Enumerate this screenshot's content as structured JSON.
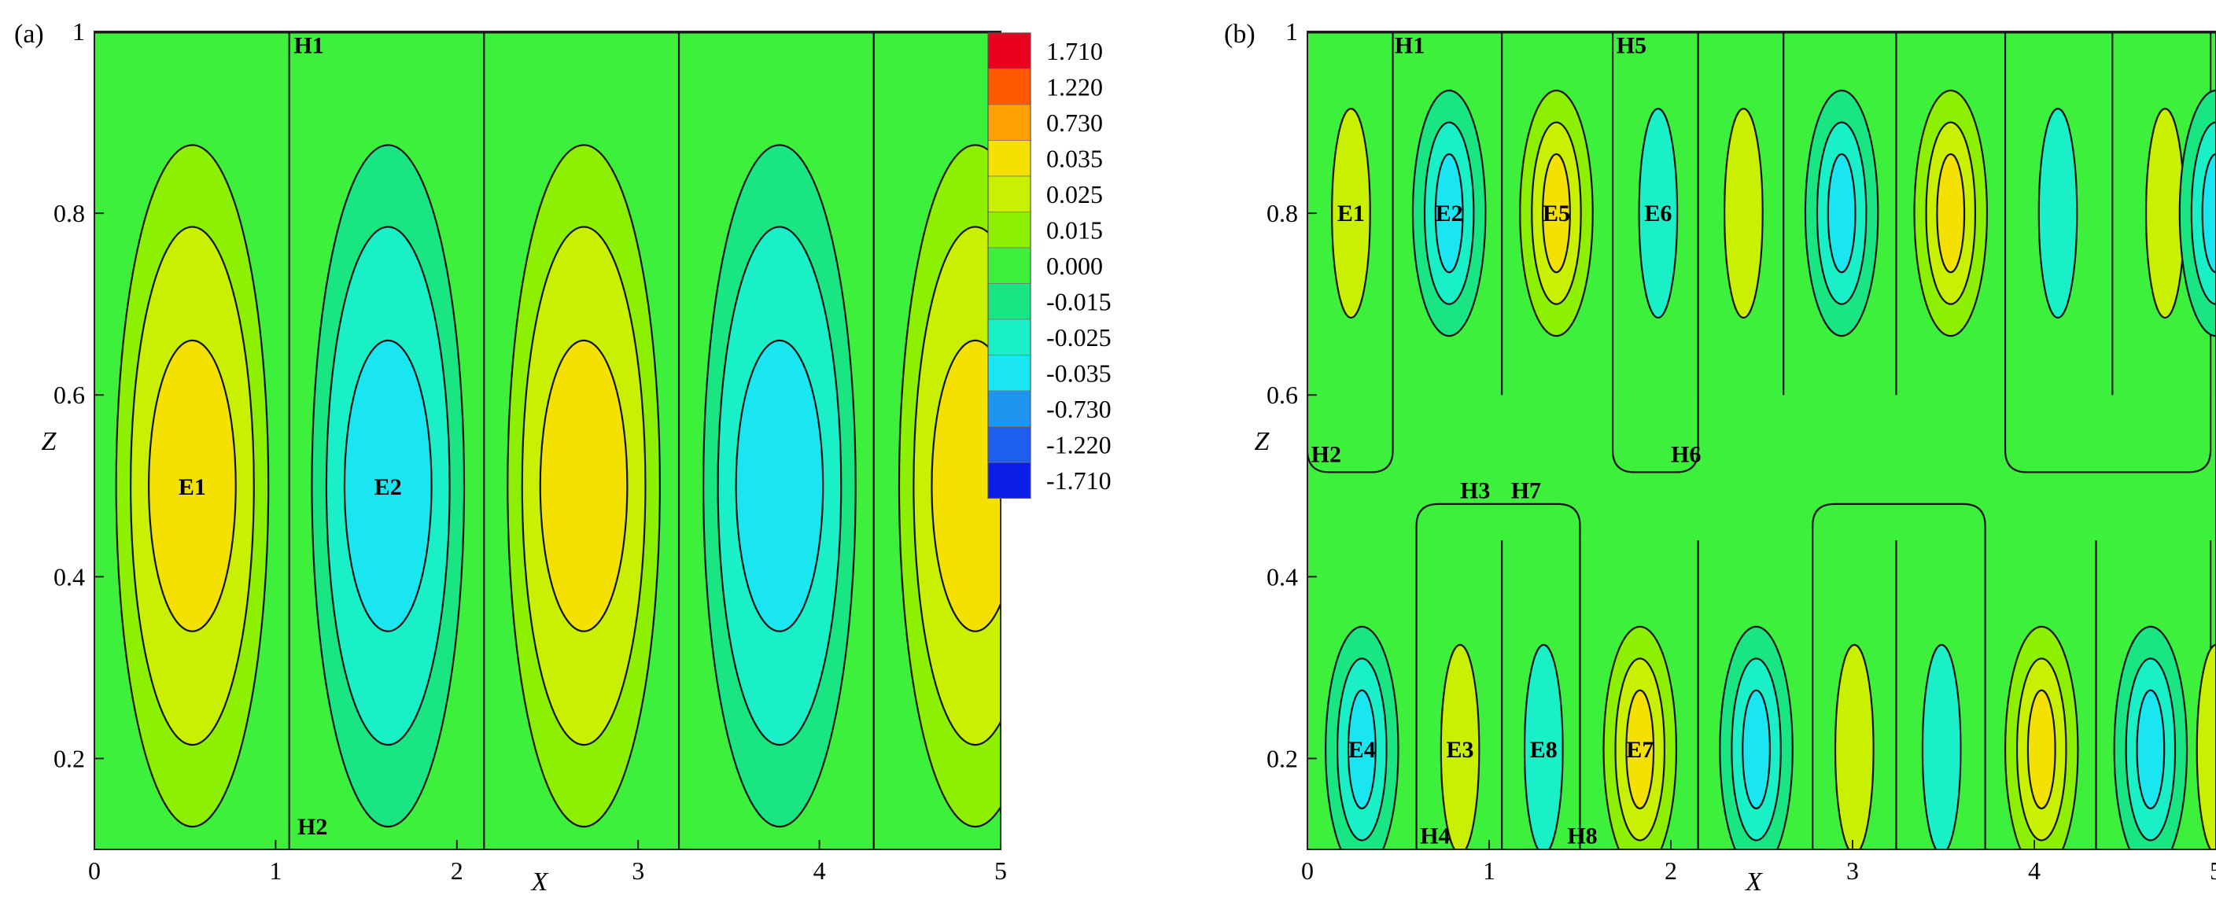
{
  "figure": {
    "panels": [
      "(a)",
      "(b)"
    ],
    "legend_label_format": "colorbar levels"
  },
  "chart_data": [
    {
      "type": "heatmap",
      "subtype": "contour",
      "panel": "(a)",
      "xlabel": "X",
      "ylabel": "Z",
      "xlim": [
        0,
        5
      ],
      "ylim": [
        0.1,
        1
      ],
      "xticks": [
        0,
        1,
        2,
        3,
        4,
        5
      ],
      "yticks": [
        0.2,
        0.4,
        0.6,
        0.8,
        1
      ],
      "ytick_labels": [
        "0.2",
        "0.4",
        "0.6",
        "0.8",
        "1"
      ],
      "boundaries": [
        1.075,
        2.15,
        3.225,
        4.3
      ],
      "cells": [
        {
          "cx": 0.54,
          "cz": 0.5,
          "amp": 1.0,
          "label": "E1"
        },
        {
          "cx": 1.62,
          "cz": 0.5,
          "amp": -1.0,
          "label": "E2"
        },
        {
          "cx": 2.7,
          "cz": 0.5,
          "amp": 1.0,
          "label": ""
        },
        {
          "cx": 3.78,
          "cz": 0.5,
          "amp": -1.0,
          "label": ""
        },
        {
          "cx": 4.86,
          "cz": 0.5,
          "amp": 1.0,
          "label": ""
        }
      ],
      "annotations": [
        {
          "text": "H1",
          "x": 1.1,
          "z": 0.985
        },
        {
          "text": "H2",
          "x": 1.12,
          "z": 0.125
        }
      ],
      "colorbar": {
        "levels": [
          "1.710",
          "1.220",
          "0.730",
          "0.035",
          "0.025",
          "0.015",
          "0.000",
          "-0.015",
          "-0.025",
          "-0.035",
          "-0.730",
          "-1.220",
          "-1.710"
        ],
        "colors": [
          "#e8001e",
          "#ff5a00",
          "#ffa000",
          "#f4e100",
          "#c8f000",
          "#8cf000",
          "#3cf03c",
          "#19e682",
          "#19f0c8",
          "#19e6f0",
          "#1e96f0",
          "#1e5ff0",
          "#0a1ee6"
        ]
      }
    },
    {
      "type": "heatmap",
      "subtype": "contour",
      "panel": "(b)",
      "xlabel": "X",
      "ylabel": "Z",
      "xlim": [
        0,
        5
      ],
      "ylim": [
        0.1,
        1
      ],
      "xticks": [
        0,
        1,
        2,
        3,
        4,
        5
      ],
      "yticks": [
        0.2,
        0.4,
        0.6,
        0.8,
        1
      ],
      "ytick_labels": [
        "0.2",
        "0.4",
        "0.6",
        "0.8",
        "1"
      ],
      "boundaries_upper": [
        0.47,
        1.07,
        1.68,
        2.15,
        2.62,
        3.24,
        3.84,
        4.43,
        4.97
      ],
      "boundaries_lower": [
        0.6,
        1.07,
        1.5,
        2.15,
        2.78,
        3.24,
        3.73,
        4.34,
        4.97
      ],
      "cells_upper": [
        {
          "cx": 0.24,
          "amp": 0.12,
          "label": "E1"
        },
        {
          "cx": 0.78,
          "amp": -1.0,
          "label": "E2"
        },
        {
          "cx": 1.37,
          "amp": 1.0,
          "label": "E5"
        },
        {
          "cx": 1.93,
          "amp": -0.12,
          "label": "E6"
        },
        {
          "cx": 2.4,
          "amp": 0.12,
          "label": ""
        },
        {
          "cx": 2.94,
          "amp": -1.0,
          "label": ""
        },
        {
          "cx": 3.54,
          "amp": 1.0,
          "label": ""
        },
        {
          "cx": 4.13,
          "amp": -0.12,
          "label": ""
        },
        {
          "cx": 4.72,
          "amp": 0.12,
          "label": ""
        },
        {
          "cx": 5.0,
          "amp": -1.0,
          "label": ""
        }
      ],
      "cells_lower": [
        {
          "cx": 0.3,
          "amp": -1.0,
          "label": "E4"
        },
        {
          "cx": 0.84,
          "amp": 0.12,
          "label": "E3"
        },
        {
          "cx": 1.3,
          "amp": -0.12,
          "label": "E8"
        },
        {
          "cx": 1.83,
          "amp": 1.0,
          "label": "E7"
        },
        {
          "cx": 2.47,
          "amp": -1.0,
          "label": ""
        },
        {
          "cx": 3.01,
          "amp": 0.12,
          "label": ""
        },
        {
          "cx": 3.49,
          "amp": -0.12,
          "label": ""
        },
        {
          "cx": 4.04,
          "amp": 1.0,
          "label": ""
        },
        {
          "cx": 4.64,
          "amp": -1.0,
          "label": ""
        },
        {
          "cx": 5.0,
          "amp": 0.12,
          "label": ""
        }
      ],
      "upper_center_z": 0.8,
      "lower_center_z": 0.21,
      "annotations": [
        {
          "text": "H1",
          "x": 0.48,
          "z": 0.985
        },
        {
          "text": "H5",
          "x": 1.7,
          "z": 0.985
        },
        {
          "text": "H2",
          "x": 0.02,
          "z": 0.535
        },
        {
          "text": "H6",
          "x": 2.0,
          "z": 0.535
        },
        {
          "text": "H3",
          "x": 0.84,
          "z": 0.495
        },
        {
          "text": "H7",
          "x": 1.12,
          "z": 0.495
        },
        {
          "text": "H4",
          "x": 0.62,
          "z": 0.115
        },
        {
          "text": "H8",
          "x": 1.43,
          "z": 0.115
        }
      ]
    }
  ]
}
